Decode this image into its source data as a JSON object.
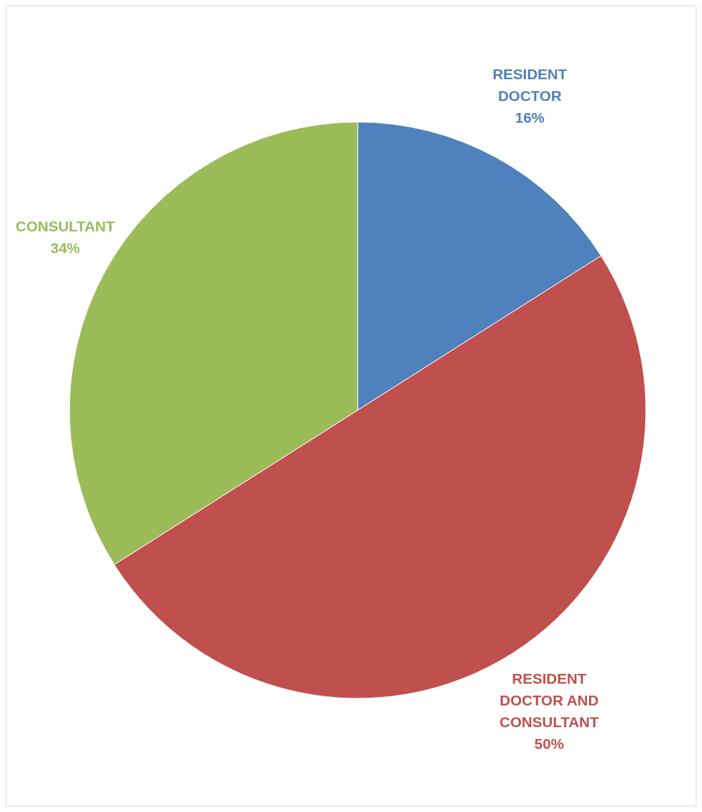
{
  "chart_data": {
    "type": "pie",
    "categories": [
      "RESIDENT DOCTOR",
      "RESIDENT DOCTOR AND CONSULTANT",
      "CONSULTANT"
    ],
    "values": [
      16,
      50,
      34
    ],
    "value_labels": [
      "16%",
      "50%",
      "34%"
    ],
    "colors": [
      "#4f81bd",
      "#c0504d",
      "#9bbb59"
    ],
    "legend": false
  }
}
